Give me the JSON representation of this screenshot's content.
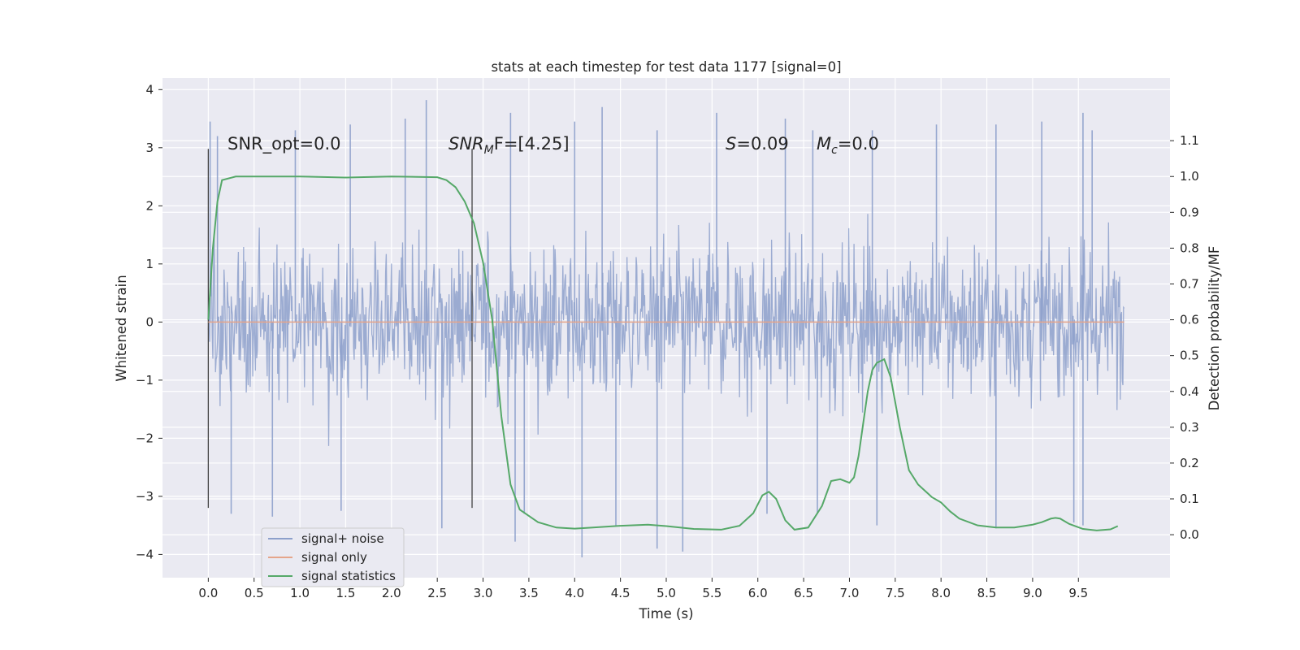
{
  "chart_data": {
    "type": "line",
    "title": "stats at each timestep for test data 1177 [signal=0]",
    "xlabel": "Time (s)",
    "ylabel": "Whitened strain",
    "y2label": "Detection probability/MF",
    "xlim": [
      -0.5,
      10.5
    ],
    "ylim": [
      -4.4,
      4.2
    ],
    "y2lim": [
      -0.12,
      1.275
    ],
    "xticks": [
      "0.0",
      "0.5",
      "1.0",
      "1.5",
      "2.0",
      "2.5",
      "3.0",
      "3.5",
      "4.0",
      "4.5",
      "5.0",
      "5.5",
      "6.0",
      "6.5",
      "7.0",
      "7.5",
      "8.0",
      "8.5",
      "9.0",
      "9.5"
    ],
    "yticks": [
      "4",
      "3",
      "2",
      "1",
      "0",
      "−1",
      "−2",
      "−3",
      "−4"
    ],
    "y2ticks": [
      "1.1",
      "1.0",
      "0.9",
      "0.8",
      "0.7",
      "0.6",
      "0.5",
      "0.4",
      "0.3",
      "0.2",
      "0.1",
      "0.0"
    ],
    "grid": true,
    "legend_position": "lower-left",
    "annotations": {
      "snr_opt": "SNR_opt=0.0",
      "snr_mf_italic": "SNR",
      "snr_mf_sub": "M",
      "snr_mf_rest": "F=[4.25]",
      "s_italic": "S",
      "s_rest": "=0.09",
      "mc_italic": "M",
      "mc_sub": "c",
      "mc_rest": "=0.0"
    },
    "vertical_markers": [
      0.0,
      2.88
    ],
    "series": [
      {
        "name": "signal+ noise",
        "axis": "left",
        "color": "#8da0cb",
        "kind": "noise",
        "x_range": [
          0.0,
          10.0
        ],
        "envelope_typical": [
          -1.8,
          2.2
        ],
        "spikes": [
          [
            0.02,
            3.45
          ],
          [
            0.1,
            3.2
          ],
          [
            0.95,
            3.3
          ],
          [
            1.55,
            3.4
          ],
          [
            2.15,
            3.5
          ],
          [
            2.38,
            3.82
          ],
          [
            3.3,
            3.6
          ],
          [
            4.0,
            3.45
          ],
          [
            4.3,
            3.7
          ],
          [
            4.9,
            3.3
          ],
          [
            5.55,
            3.6
          ],
          [
            6.3,
            3.5
          ],
          [
            6.6,
            3.3
          ],
          [
            7.25,
            3.3
          ],
          [
            7.95,
            3.4
          ],
          [
            8.6,
            3.4
          ],
          [
            9.1,
            3.45
          ],
          [
            9.55,
            3.6
          ],
          [
            9.65,
            3.3
          ],
          [
            0.25,
            -3.3
          ],
          [
            0.7,
            -3.35
          ],
          [
            1.45,
            -3.25
          ],
          [
            2.55,
            -3.55
          ],
          [
            3.35,
            -3.78
          ],
          [
            3.45,
            -3.3
          ],
          [
            4.08,
            -4.05
          ],
          [
            4.45,
            -3.5
          ],
          [
            4.9,
            -3.9
          ],
          [
            5.18,
            -3.95
          ],
          [
            6.1,
            -3.3
          ],
          [
            6.65,
            -3.3
          ],
          [
            7.3,
            -3.5
          ],
          [
            8.6,
            -3.55
          ],
          [
            9.45,
            -3.45
          ],
          [
            9.55,
            -3.5
          ]
        ]
      },
      {
        "name": "signal only",
        "axis": "left",
        "color": "#e5a58b",
        "x": [
          0.0,
          10.0
        ],
        "y": [
          0.0,
          0.0
        ]
      },
      {
        "name": "signal statistics",
        "axis": "right",
        "color": "#55a868",
        "x": [
          0.0,
          0.05,
          0.1,
          0.15,
          0.3,
          0.5,
          1.0,
          1.5,
          2.0,
          2.5,
          2.6,
          2.7,
          2.8,
          2.9,
          3.0,
          3.1,
          3.2,
          3.3,
          3.4,
          3.6,
          3.8,
          4.0,
          4.2,
          4.5,
          4.8,
          5.0,
          5.3,
          5.6,
          5.8,
          5.95,
          6.05,
          6.12,
          6.2,
          6.3,
          6.4,
          6.55,
          6.7,
          6.8,
          6.9,
          7.0,
          7.05,
          7.1,
          7.15,
          7.2,
          7.25,
          7.3,
          7.38,
          7.45,
          7.55,
          7.65,
          7.75,
          7.9,
          8.0,
          8.1,
          8.2,
          8.4,
          8.6,
          8.8,
          9.0,
          9.1,
          9.2,
          9.25,
          9.3,
          9.4,
          9.55,
          9.7,
          9.85,
          9.93
        ],
        "y": [
          0.6,
          0.8,
          0.93,
          0.99,
          1.0,
          1.0,
          1.0,
          0.997,
          1.0,
          0.998,
          0.99,
          0.97,
          0.93,
          0.87,
          0.76,
          0.6,
          0.33,
          0.14,
          0.07,
          0.035,
          0.02,
          0.017,
          0.02,
          0.025,
          0.028,
          0.024,
          0.016,
          0.014,
          0.025,
          0.06,
          0.11,
          0.12,
          0.1,
          0.04,
          0.014,
          0.02,
          0.08,
          0.15,
          0.155,
          0.145,
          0.16,
          0.22,
          0.31,
          0.4,
          0.46,
          0.48,
          0.49,
          0.44,
          0.3,
          0.18,
          0.14,
          0.105,
          0.09,
          0.065,
          0.045,
          0.026,
          0.02,
          0.02,
          0.028,
          0.035,
          0.045,
          0.047,
          0.045,
          0.03,
          0.016,
          0.012,
          0.015,
          0.024
        ]
      }
    ]
  }
}
